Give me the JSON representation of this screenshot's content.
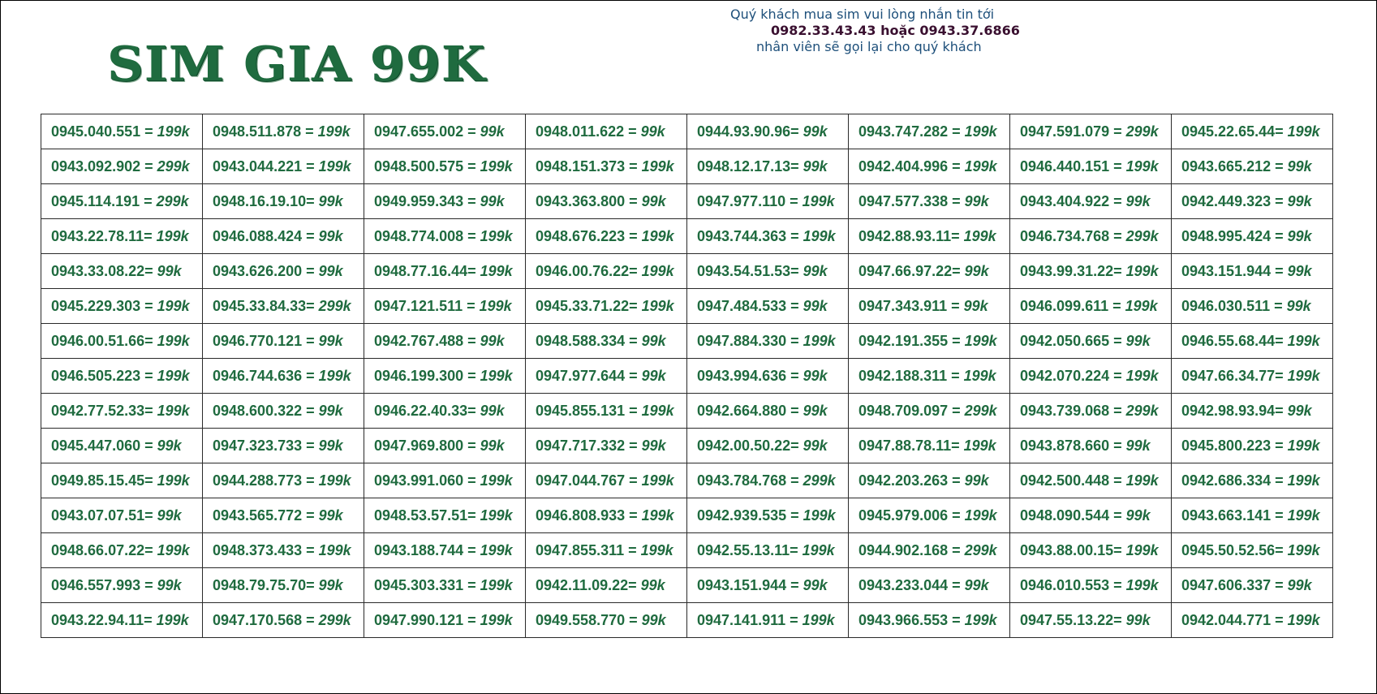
{
  "title": "SIM GIA 99K",
  "notice": {
    "line1": "Quý khách mua sim vui lòng nhắn tin tới",
    "line2": "0982.33.43.43 hoặc 0943.37.6866",
    "line3": "nhân viên sẽ gọi lại cho quý khách"
  },
  "colors": {
    "text_green": "#1f6b3f",
    "notice_blue": "#1d4f7a",
    "notice_dark": "#3a1030"
  },
  "rows": [
    [
      [
        "0945.040.551 = ",
        "199k"
      ],
      [
        "0948.511.878 = ",
        "199k"
      ],
      [
        "0947.655.002 = ",
        "99k"
      ],
      [
        "0948.011.622 = ",
        "99k"
      ],
      [
        "0944.93.90.96= ",
        "99k"
      ],
      [
        "0943.747.282 = ",
        "199k"
      ],
      [
        "0947.591.079 = ",
        "299k"
      ],
      [
        "0945.22.65.44= ",
        "199k"
      ]
    ],
    [
      [
        "0943.092.902 = ",
        "299k"
      ],
      [
        "0943.044.221 = ",
        "199k"
      ],
      [
        "0948.500.575 = ",
        "199k"
      ],
      [
        "0948.151.373 = ",
        "199k"
      ],
      [
        "0948.12.17.13= ",
        "99k"
      ],
      [
        "0942.404.996 = ",
        "199k"
      ],
      [
        "0946.440.151 = ",
        "199k"
      ],
      [
        "0943.665.212 = ",
        "99k"
      ]
    ],
    [
      [
        "0945.114.191 = ",
        "299k"
      ],
      [
        "0948.16.19.10= ",
        "99k"
      ],
      [
        "0949.959.343 = ",
        "99k"
      ],
      [
        "0943.363.800 = ",
        "99k"
      ],
      [
        "0947.977.110 = ",
        "199k"
      ],
      [
        "0947.577.338 = ",
        "99k"
      ],
      [
        "0943.404.922 = ",
        "99k"
      ],
      [
        "0942.449.323 = ",
        "99k"
      ]
    ],
    [
      [
        "0943.22.78.11= ",
        "199k"
      ],
      [
        "0946.088.424 = ",
        "99k"
      ],
      [
        "0948.774.008 = ",
        "199k"
      ],
      [
        "0948.676.223 = ",
        "199k"
      ],
      [
        "0943.744.363 = ",
        "199k"
      ],
      [
        "0942.88.93.11= ",
        "199k"
      ],
      [
        "0946.734.768 = ",
        "299k"
      ],
      [
        "0948.995.424 = ",
        "99k"
      ]
    ],
    [
      [
        "0943.33.08.22= ",
        "99k"
      ],
      [
        "0943.626.200 = ",
        "99k"
      ],
      [
        "0948.77.16.44= ",
        "199k"
      ],
      [
        "0946.00.76.22= ",
        "199k"
      ],
      [
        "0943.54.51.53= ",
        "99k"
      ],
      [
        "0947.66.97.22= ",
        "99k"
      ],
      [
        "0943.99.31.22= ",
        "199k"
      ],
      [
        "0943.151.944 = ",
        "99k"
      ]
    ],
    [
      [
        "0945.229.303 = ",
        "199k"
      ],
      [
        "0945.33.84.33= ",
        "299k"
      ],
      [
        "0947.121.511 = ",
        "199k"
      ],
      [
        "0945.33.71.22= ",
        "199k"
      ],
      [
        "0947.484.533 = ",
        "99k"
      ],
      [
        "0947.343.911 = ",
        "99k"
      ],
      [
        "0946.099.611 = ",
        "199k"
      ],
      [
        "0946.030.511 = ",
        "99k"
      ]
    ],
    [
      [
        "0946.00.51.66= ",
        "199k"
      ],
      [
        "0946.770.121 = ",
        "99k"
      ],
      [
        "0942.767.488 = ",
        "99k"
      ],
      [
        "0948.588.334 = ",
        "99k"
      ],
      [
        "0947.884.330 = ",
        "199k"
      ],
      [
        "0942.191.355 = ",
        "199k"
      ],
      [
        "0942.050.665 = ",
        "99k"
      ],
      [
        "0946.55.68.44= ",
        "199k"
      ]
    ],
    [
      [
        "0946.505.223 = ",
        "199k"
      ],
      [
        "0946.744.636 = ",
        "199k"
      ],
      [
        "0946.199.300 = ",
        "199k"
      ],
      [
        "0947.977.644 = ",
        "99k"
      ],
      [
        "0943.994.636 = ",
        "99k"
      ],
      [
        "0942.188.311 = ",
        "199k"
      ],
      [
        "0942.070.224 = ",
        "199k"
      ],
      [
        "0947.66.34.77= ",
        "199k"
      ]
    ],
    [
      [
        "0942.77.52.33= ",
        "199k"
      ],
      [
        "0948.600.322 = ",
        "99k"
      ],
      [
        "0946.22.40.33= ",
        "99k"
      ],
      [
        "0945.855.131 = ",
        "199k"
      ],
      [
        "0942.664.880 = ",
        "99k"
      ],
      [
        "0948.709.097 = ",
        "299k"
      ],
      [
        "0943.739.068 = ",
        "299k"
      ],
      [
        "0942.98.93.94= ",
        "99k"
      ]
    ],
    [
      [
        "0945.447.060 = ",
        "99k"
      ],
      [
        "0947.323.733 = ",
        "99k"
      ],
      [
        "0947.969.800 = ",
        "99k"
      ],
      [
        "0947.717.332 = ",
        "99k"
      ],
      [
        "0942.00.50.22= ",
        "99k"
      ],
      [
        "0947.88.78.11= ",
        "199k"
      ],
      [
        "0943.878.660 = ",
        "99k"
      ],
      [
        "0945.800.223 = ",
        "199k"
      ]
    ],
    [
      [
        "0949.85.15.45= ",
        "199k"
      ],
      [
        "0944.288.773 = ",
        "199k"
      ],
      [
        "0943.991.060 = ",
        "199k"
      ],
      [
        "0947.044.767 = ",
        "199k"
      ],
      [
        "0943.784.768 = ",
        "299k"
      ],
      [
        "0942.203.263 = ",
        "99k"
      ],
      [
        "0942.500.448 = ",
        "199k"
      ],
      [
        "0942.686.334 = ",
        "199k"
      ]
    ],
    [
      [
        "0943.07.07.51= ",
        "99k"
      ],
      [
        "0943.565.772 = ",
        "99k"
      ],
      [
        "0948.53.57.51= ",
        "199k"
      ],
      [
        "0946.808.933 = ",
        "199k"
      ],
      [
        "0942.939.535 = ",
        "199k"
      ],
      [
        "0945.979.006 = ",
        "199k"
      ],
      [
        "0948.090.544 = ",
        "99k"
      ],
      [
        "0943.663.141 = ",
        "199k"
      ]
    ],
    [
      [
        "0948.66.07.22= ",
        "199k"
      ],
      [
        "0948.373.433 = ",
        "199k"
      ],
      [
        "0943.188.744 = ",
        "199k"
      ],
      [
        "0947.855.311 = ",
        "199k"
      ],
      [
        "0942.55.13.11= ",
        "199k"
      ],
      [
        "0944.902.168 = ",
        "299k"
      ],
      [
        "0943.88.00.15= ",
        "199k"
      ],
      [
        "0945.50.52.56= ",
        "199k"
      ]
    ],
    [
      [
        "0946.557.993 = ",
        "99k"
      ],
      [
        "0948.79.75.70= ",
        "99k"
      ],
      [
        "0945.303.331 = ",
        "199k"
      ],
      [
        "0942.11.09.22= ",
        "99k"
      ],
      [
        "0943.151.944 = ",
        "99k"
      ],
      [
        "0943.233.044 = ",
        "99k"
      ],
      [
        "0946.010.553 = ",
        "199k"
      ],
      [
        "0947.606.337 = ",
        "99k"
      ]
    ],
    [
      [
        "0943.22.94.11= ",
        "199k"
      ],
      [
        "0947.170.568 = ",
        "299k"
      ],
      [
        "0947.990.121 = ",
        "199k"
      ],
      [
        "0949.558.770 = ",
        "99k"
      ],
      [
        "0947.141.911 = ",
        "199k"
      ],
      [
        "0943.966.553 = ",
        "199k"
      ],
      [
        "0947.55.13.22= ",
        "99k"
      ],
      [
        "0942.044.771 = ",
        "199k"
      ]
    ]
  ]
}
